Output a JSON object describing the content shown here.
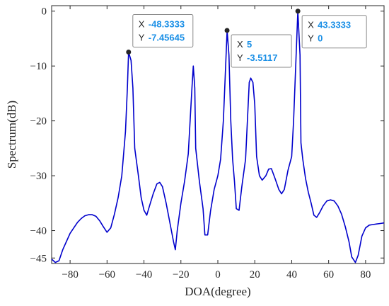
{
  "chart_data": {
    "type": "line",
    "xlabel": "DOA(degree)",
    "ylabel": "Spectrum(dB)",
    "xlim": [
      -90,
      90
    ],
    "ylim": [
      -46,
      1
    ],
    "x_ticks": [
      -80,
      -60,
      -40,
      -20,
      0,
      20,
      40,
      60,
      80
    ],
    "y_ticks": [
      0,
      -10,
      -20,
      -30,
      -40,
      -45
    ],
    "grid": false,
    "series": [
      {
        "color": "#0000cc",
        "points": [
          [
            -90,
            -45.2
          ],
          [
            -88,
            -45.8
          ],
          [
            -86,
            -45.5
          ],
          [
            -84,
            -43.5
          ],
          [
            -82,
            -42
          ],
          [
            -80,
            -40.5
          ],
          [
            -78,
            -39.5
          ],
          [
            -76,
            -38.5
          ],
          [
            -74,
            -37.8
          ],
          [
            -72,
            -37.3
          ],
          [
            -70,
            -37.1
          ],
          [
            -68,
            -37.1
          ],
          [
            -66,
            -37.4
          ],
          [
            -64,
            -38.2
          ],
          [
            -62,
            -39.3
          ],
          [
            -60,
            -40.3
          ],
          [
            -58,
            -39.5
          ],
          [
            -56,
            -37
          ],
          [
            -54,
            -34
          ],
          [
            -52,
            -30
          ],
          [
            -50,
            -22
          ],
          [
            -49,
            -14
          ],
          [
            -48.3333,
            -7.45645
          ],
          [
            -47,
            -9
          ],
          [
            -46,
            -14
          ],
          [
            -45,
            -25
          ],
          [
            -43,
            -30
          ],
          [
            -41.5,
            -34
          ],
          [
            -40,
            -36.3
          ],
          [
            -38.5,
            -37.2
          ],
          [
            -37,
            -35.5
          ],
          [
            -35,
            -33.3
          ],
          [
            -33,
            -31.5
          ],
          [
            -31.5,
            -31.2
          ],
          [
            -30,
            -32
          ],
          [
            -28,
            -35
          ],
          [
            -26,
            -38.5
          ],
          [
            -24,
            -42
          ],
          [
            -23,
            -43.5
          ],
          [
            -22,
            -40
          ],
          [
            -20,
            -35
          ],
          [
            -18,
            -31
          ],
          [
            -16,
            -26
          ],
          [
            -15,
            -20
          ],
          [
            -14,
            -14
          ],
          [
            -13.3,
            -10
          ],
          [
            -12.5,
            -14
          ],
          [
            -12,
            -25
          ],
          [
            -10,
            -31
          ],
          [
            -8,
            -36
          ],
          [
            -7,
            -40.8
          ],
          [
            -5.5,
            -40.8
          ],
          [
            -4,
            -36.5
          ],
          [
            -2,
            -32.5
          ],
          [
            0,
            -30
          ],
          [
            1.5,
            -27
          ],
          [
            3,
            -20
          ],
          [
            4,
            -12
          ],
          [
            5,
            -3.5117
          ],
          [
            6,
            -8
          ],
          [
            7,
            -20
          ],
          [
            8,
            -27
          ],
          [
            9,
            -31
          ],
          [
            10,
            -36
          ],
          [
            11.5,
            -36.3
          ],
          [
            13,
            -32
          ],
          [
            15,
            -27
          ],
          [
            16,
            -20
          ],
          [
            17,
            -13
          ],
          [
            17.8,
            -12.2
          ],
          [
            19,
            -13
          ],
          [
            20,
            -17
          ],
          [
            21,
            -26.5
          ],
          [
            22.5,
            -30
          ],
          [
            24,
            -30.8
          ],
          [
            26,
            -30
          ],
          [
            27.5,
            -28.8
          ],
          [
            29,
            -28.7
          ],
          [
            31,
            -30.5
          ],
          [
            33,
            -32.5
          ],
          [
            34.5,
            -33.3
          ],
          [
            36,
            -32.5
          ],
          [
            38,
            -29
          ],
          [
            40,
            -26.5
          ],
          [
            41,
            -20
          ],
          [
            42.5,
            -7
          ],
          [
            43.3333,
            0
          ],
          [
            44.5,
            -8
          ],
          [
            45,
            -24
          ],
          [
            46,
            -27
          ],
          [
            47.5,
            -30.5
          ],
          [
            49,
            -33
          ],
          [
            50.5,
            -35
          ],
          [
            52,
            -37.2
          ],
          [
            53.5,
            -37.6
          ],
          [
            55,
            -36.8
          ],
          [
            57,
            -35.5
          ],
          [
            59,
            -34.6
          ],
          [
            61,
            -34.4
          ],
          [
            63,
            -34.6
          ],
          [
            65,
            -35.5
          ],
          [
            67,
            -37
          ],
          [
            69,
            -39.3
          ],
          [
            71,
            -42
          ],
          [
            72.5,
            -44.8
          ],
          [
            74.5,
            -45.8
          ],
          [
            76,
            -44.5
          ],
          [
            78,
            -41
          ],
          [
            80,
            -39.5
          ],
          [
            82,
            -39
          ],
          [
            84,
            -38.9
          ],
          [
            86,
            -38.8
          ],
          [
            88,
            -38.7
          ],
          [
            90,
            -38.6
          ]
        ]
      }
    ],
    "datatips": [
      {
        "x_label": "X",
        "y_label": "Y",
        "x_value": "-48.3333",
        "y_value": "-7.45645",
        "x": -48.3333,
        "y": -7.45645
      },
      {
        "x_label": "X",
        "y_label": "Y",
        "x_value": "5",
        "y_value": "-3.5117",
        "x": 5,
        "y": -3.5117
      },
      {
        "x_label": "X",
        "y_label": "Y",
        "x_value": "43.3333",
        "y_value": "0",
        "x": 43.3333,
        "y": 0
      }
    ]
  }
}
